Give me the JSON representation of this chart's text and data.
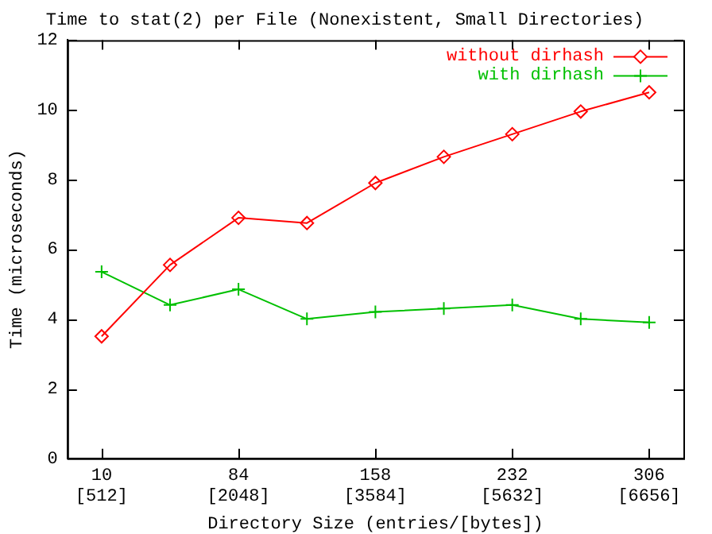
{
  "chart_data": {
    "type": "line",
    "title": "Time to stat(2) per File (Nonexistent, Small Directories)",
    "xlabel": "Directory Size (entries/[bytes])",
    "ylabel": "Time (microseconds)",
    "categories": [
      "10\n[512]",
      null,
      "84\n[2048]",
      null,
      "158\n[3584]",
      null,
      "232\n[5632]",
      null,
      "306\n[6656]"
    ],
    "series": [
      {
        "name": "without dirhash",
        "color": "#ff0000",
        "marker": "diamond",
        "values": [
          3.5,
          5.55,
          6.9,
          6.75,
          7.9,
          8.65,
          9.3,
          9.95,
          10.5
        ]
      },
      {
        "name": "with dirhash",
        "color": "#00c000",
        "marker": "cross",
        "values": [
          5.35,
          4.4,
          4.85,
          4.0,
          4.2,
          4.3,
          4.4,
          4.0,
          3.9
        ]
      }
    ],
    "ylim": [
      0,
      12
    ],
    "yticks": [
      0,
      2,
      4,
      6,
      8,
      10,
      12
    ],
    "grid": false,
    "legend": "top right",
    "line_style": "solid"
  }
}
